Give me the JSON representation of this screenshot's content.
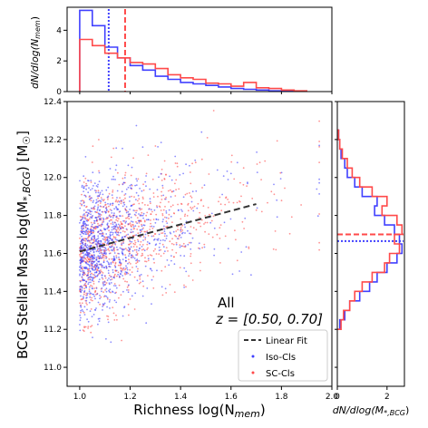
{
  "chart_data": [
    {
      "type": "scatter",
      "panel": "main",
      "xlabel": "Richness log(N",
      "xlabel_sub": "mem",
      "xlabel_close": ")",
      "ylabel": "BCG Stellar Mass log(M",
      "ylabel_sub": "*,BCG",
      "ylabel_close": ") [M",
      "ylabel_sun": "☉",
      "ylabel_end": "]",
      "xlim": [
        0.95,
        2.0
      ],
      "ylim": [
        10.9,
        12.4
      ],
      "xticks": [
        "1.0",
        "1.2",
        "1.4",
        "1.6",
        "1.8",
        "2.0"
      ],
      "xtick_values": [
        1.0,
        1.2,
        1.4,
        1.6,
        1.8,
        2.0
      ],
      "yticks": [
        "11.0",
        "11.2",
        "11.4",
        "11.6",
        "11.8",
        "12.0",
        "12.2",
        "12.4"
      ],
      "ytick_values": [
        11.0,
        11.2,
        11.4,
        11.6,
        11.8,
        12.0,
        12.2,
        12.4
      ],
      "annotation_line1": "All",
      "annotation_line2": "z = [0.50, 0.70]",
      "fit": {
        "name": "Linear Fit",
        "x": [
          1.0,
          1.7
        ],
        "y": [
          11.61,
          11.86
        ],
        "color": "#333333"
      },
      "series": [
        {
          "name": "Iso-Cls",
          "color": "#4040ff"
        },
        {
          "name": "SC-Cls",
          "color": "#ff4a4a"
        }
      ],
      "legend_placement": "lower-right"
    },
    {
      "type": "histogram",
      "panel": "top",
      "ylabel": "dN/dlog(N",
      "ylabel_sub": "mem",
      "ylabel_close": ")",
      "ylim": [
        0,
        5.5
      ],
      "yticks": [
        "0",
        "2",
        "4"
      ],
      "ytick_values": [
        0,
        2,
        4
      ],
      "bin_edges": [
        1.0,
        1.05,
        1.1,
        1.15,
        1.2,
        1.25,
        1.3,
        1.35,
        1.4,
        1.45,
        1.5,
        1.55,
        1.6,
        1.65,
        1.7,
        1.75,
        1.8,
        1.85,
        1.9
      ],
      "series": [
        {
          "name": "Iso-Cls",
          "color": "#4040ff",
          "values": [
            5.3,
            4.3,
            2.9,
            2.2,
            1.7,
            1.4,
            1.0,
            0.8,
            0.6,
            0.5,
            0.4,
            0.3,
            0.2,
            0.15,
            0.1,
            0.05,
            0.05,
            0.02
          ],
          "median": 1.115
        },
        {
          "name": "SC-Cls",
          "color": "#ff4a4a",
          "values": [
            3.4,
            3.0,
            2.5,
            2.2,
            1.9,
            1.8,
            1.5,
            1.1,
            0.9,
            0.8,
            0.55,
            0.5,
            0.35,
            0.6,
            0.25,
            0.2,
            0.1,
            0.05
          ],
          "median": 1.18
        }
      ]
    },
    {
      "type": "histogram",
      "panel": "right",
      "orientation": "horizontal",
      "xlabel": "dN/dlog(M",
      "xlabel_sub": "*,BCG",
      "xlabel_close": ")",
      "xlim": [
        0,
        2.7
      ],
      "xticks": [
        "0",
        "2"
      ],
      "xtick_values": [
        0,
        2
      ],
      "bin_edges": [
        11.2,
        11.25,
        11.3,
        11.35,
        11.4,
        11.45,
        11.5,
        11.55,
        11.6,
        11.65,
        11.7,
        11.75,
        11.8,
        11.85,
        11.9,
        11.95,
        12.0,
        12.05,
        12.1,
        12.15,
        12.2,
        12.25
      ],
      "series": [
        {
          "name": "Iso-Cls",
          "color": "#4040ff",
          "values": [
            0.1,
            0.3,
            0.5,
            0.9,
            1.3,
            1.6,
            2.0,
            2.4,
            2.6,
            2.5,
            2.3,
            1.9,
            1.5,
            1.6,
            1.0,
            0.7,
            0.4,
            0.3,
            0.15,
            0.1,
            0.05
          ],
          "median": 11.665
        },
        {
          "name": "SC-Cls",
          "color": "#ff4a4a",
          "values": [
            0.15,
            0.25,
            0.5,
            0.7,
            1.0,
            1.4,
            1.9,
            2.1,
            2.5,
            2.3,
            2.6,
            2.4,
            1.8,
            2.0,
            1.4,
            0.9,
            0.6,
            0.4,
            0.2,
            0.1,
            0.05
          ],
          "median": 11.7
        }
      ]
    }
  ]
}
